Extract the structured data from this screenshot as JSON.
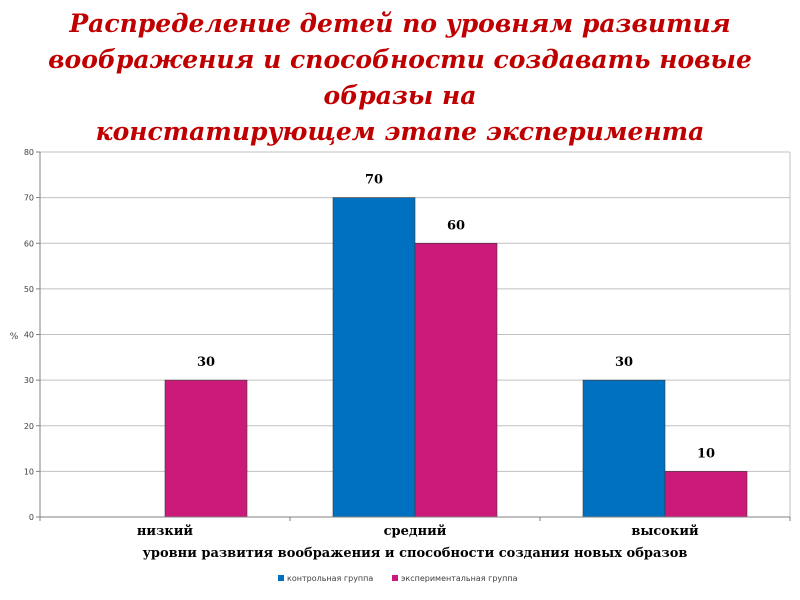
{
  "title_lines": [
    "Распределение детей по уровням развития",
    "воображения и способности создавать новые образы на",
    "констатирующем этапе эксперимента"
  ],
  "colors": {
    "title": "#c00000",
    "series_control": "#0070c0",
    "series_experimental": "#cc1a7a",
    "axis": "#808080",
    "grid": "#c0c0c0",
    "text": "#000000"
  },
  "chart_data": {
    "type": "bar",
    "categories": [
      "низкий",
      "средний",
      "высокий"
    ],
    "series": [
      {
        "name": "контрольная группа",
        "values": [
          0,
          70,
          30
        ],
        "labels": [
          "",
          "70",
          "30"
        ]
      },
      {
        "name": "экспериментальная группа",
        "values": [
          30,
          60,
          10
        ],
        "labels": [
          "30",
          "60",
          "10"
        ]
      }
    ],
    "xlabel": "уровни развития воображения и способности создания новых образов",
    "ylabel": "%",
    "ylim": [
      0,
      80
    ],
    "yticks": [
      "0",
      "10",
      "20",
      "30",
      "40",
      "50",
      "60",
      "70",
      "80"
    ],
    "grid": true,
    "legend": "bottom"
  }
}
